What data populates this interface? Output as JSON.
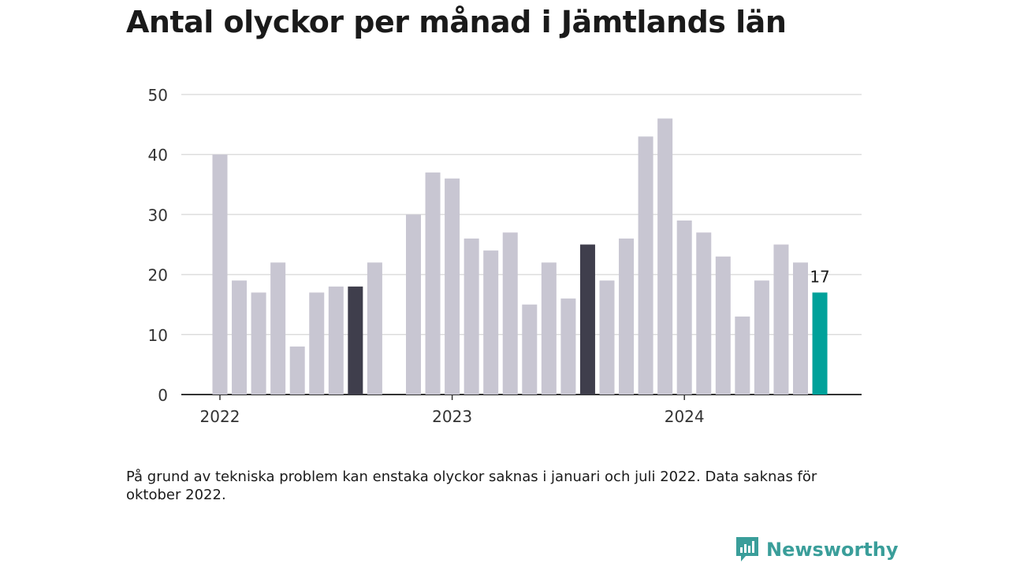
{
  "header": {
    "title": "Antal olyckor per månad i Jämtlands län"
  },
  "footnote": "På grund av tekniska problem kan enstaka olyckor saknas i januari och juli 2022. Data saknas för oktober 2022.",
  "brand": {
    "name": "Newsworthy",
    "color": "#3a9e9a"
  },
  "colors": {
    "bar": "#c8c6d2",
    "highlight": "#3f3e4c",
    "latest": "#00a19a",
    "grid": "#dddddd",
    "axis": "#333333",
    "text": "#333333"
  },
  "chart_data": {
    "type": "bar",
    "title": "Antal olyckor per månad i Jämtlands län",
    "xlabel": "",
    "ylabel": "",
    "ylim": [
      0,
      50
    ],
    "yticks": [
      0,
      10,
      20,
      30,
      40,
      50
    ],
    "grid": true,
    "x_tick_labels": [
      {
        "label": "2022",
        "index": 0
      },
      {
        "label": "2023",
        "index": 12
      },
      {
        "label": "2024",
        "index": 24
      }
    ],
    "categories": [
      "2022-01",
      "2022-02",
      "2022-03",
      "2022-04",
      "2022-05",
      "2022-06",
      "2022-07",
      "2022-08",
      "2022-09",
      "2022-10",
      "2022-11",
      "2022-12",
      "2023-01",
      "2023-02",
      "2023-03",
      "2023-04",
      "2023-05",
      "2023-06",
      "2023-07",
      "2023-08",
      "2023-09",
      "2023-10",
      "2023-11",
      "2023-12",
      "2024-01",
      "2024-02",
      "2024-03",
      "2024-04",
      "2024-05",
      "2024-06",
      "2024-07",
      "2024-08"
    ],
    "values": [
      40,
      19,
      17,
      22,
      8,
      17,
      18,
      18,
      22,
      null,
      30,
      37,
      36,
      26,
      24,
      27,
      15,
      22,
      16,
      25,
      19,
      26,
      43,
      46,
      29,
      27,
      23,
      13,
      19,
      25,
      22,
      17
    ],
    "highlight_indices": [
      7,
      19
    ],
    "latest_index": 31,
    "data_labels": [
      {
        "index": 31,
        "text": "17"
      }
    ]
  }
}
